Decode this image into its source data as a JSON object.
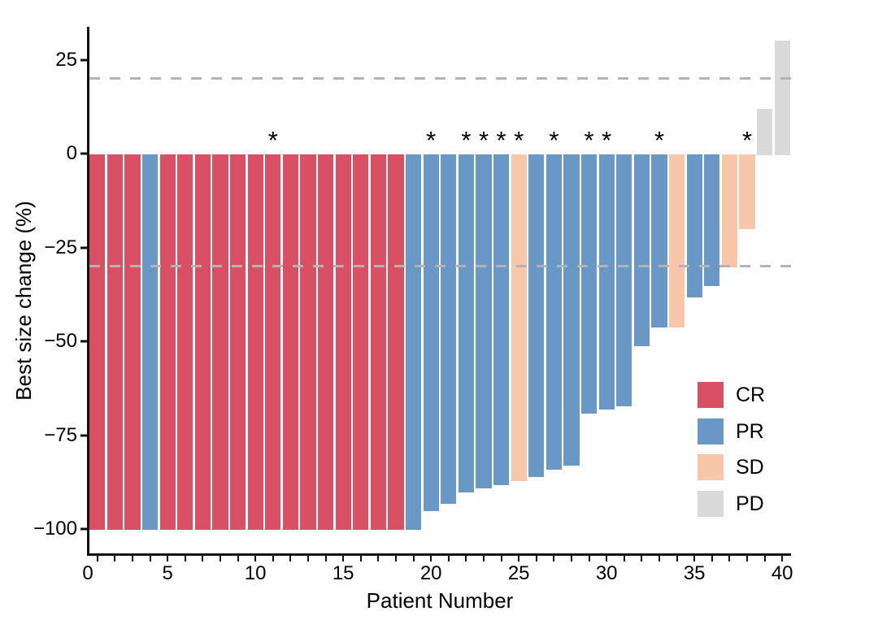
{
  "chart_data": {
    "type": "bar",
    "subtype": "waterfall",
    "title": "",
    "xlabel": "Patient Number",
    "ylabel": "Best size change (%)",
    "xlim": [
      0,
      40
    ],
    "ylim": [
      -100,
      30
    ],
    "grid": "off",
    "annotation_symbol": "*",
    "x_tick_labels": [
      "0",
      "5",
      "10",
      "15",
      "20",
      "25",
      "30",
      "35",
      "40"
    ],
    "x_tick_values": [
      0,
      5,
      10,
      15,
      20,
      25,
      30,
      35,
      40
    ],
    "y_ticks": [
      {
        "value": 25,
        "label": "25"
      },
      {
        "value": 0,
        "label": "0"
      },
      {
        "value": -25,
        "label": "−25"
      },
      {
        "value": -50,
        "label": "−50"
      },
      {
        "value": -75,
        "label": "−75"
      },
      {
        "value": -100,
        "label": "−100"
      }
    ],
    "reference_lines": [
      {
        "value": 20,
        "style": "dashed",
        "color": "#b3b3b3"
      },
      {
        "value": -30,
        "style": "dashed",
        "color": "#b3b3b3"
      }
    ],
    "colors": {
      "CR": "#d94f63",
      "PR": "#6997c6",
      "SD": "#f8c7aa",
      "PD": "#d9d9d9"
    },
    "legend": {
      "position": "right-center",
      "entries": [
        {
          "label": "CR",
          "response": "CR"
        },
        {
          "label": "PR",
          "response": "PR"
        },
        {
          "label": "SD",
          "response": "SD"
        },
        {
          "label": "PD",
          "response": "PD"
        }
      ]
    },
    "patients": [
      {
        "patient": 1,
        "value": -100,
        "response": "CR",
        "asterisk": false
      },
      {
        "patient": 2,
        "value": -100,
        "response": "CR",
        "asterisk": false
      },
      {
        "patient": 3,
        "value": -100,
        "response": "CR",
        "asterisk": false
      },
      {
        "patient": 4,
        "value": -100,
        "response": "PR",
        "asterisk": false
      },
      {
        "patient": 5,
        "value": -100,
        "response": "CR",
        "asterisk": false
      },
      {
        "patient": 6,
        "value": -100,
        "response": "CR",
        "asterisk": false
      },
      {
        "patient": 7,
        "value": -100,
        "response": "CR",
        "asterisk": false
      },
      {
        "patient": 8,
        "value": -100,
        "response": "CR",
        "asterisk": false
      },
      {
        "patient": 9,
        "value": -100,
        "response": "CR",
        "asterisk": false
      },
      {
        "patient": 10,
        "value": -100,
        "response": "CR",
        "asterisk": false
      },
      {
        "patient": 11,
        "value": -100,
        "response": "CR",
        "asterisk": true
      },
      {
        "patient": 12,
        "value": -100,
        "response": "CR",
        "asterisk": false
      },
      {
        "patient": 13,
        "value": -100,
        "response": "CR",
        "asterisk": false
      },
      {
        "patient": 14,
        "value": -100,
        "response": "CR",
        "asterisk": false
      },
      {
        "patient": 15,
        "value": -100,
        "response": "CR",
        "asterisk": false
      },
      {
        "patient": 16,
        "value": -100,
        "response": "CR",
        "asterisk": false
      },
      {
        "patient": 17,
        "value": -100,
        "response": "CR",
        "asterisk": false
      },
      {
        "patient": 18,
        "value": -100,
        "response": "CR",
        "asterisk": false
      },
      {
        "patient": 19,
        "value": -100,
        "response": "PR",
        "asterisk": false
      },
      {
        "patient": 20,
        "value": -95,
        "response": "PR",
        "asterisk": true
      },
      {
        "patient": 21,
        "value": -93,
        "response": "PR",
        "asterisk": false
      },
      {
        "patient": 22,
        "value": -90,
        "response": "PR",
        "asterisk": true
      },
      {
        "patient": 23,
        "value": -89,
        "response": "PR",
        "asterisk": true
      },
      {
        "patient": 24,
        "value": -88,
        "response": "PR",
        "asterisk": true
      },
      {
        "patient": 25,
        "value": -87,
        "response": "SD",
        "asterisk": true
      },
      {
        "patient": 26,
        "value": -86,
        "response": "PR",
        "asterisk": false
      },
      {
        "patient": 27,
        "value": -84,
        "response": "PR",
        "asterisk": true
      },
      {
        "patient": 28,
        "value": -83,
        "response": "PR",
        "asterisk": false
      },
      {
        "patient": 29,
        "value": -69,
        "response": "PR",
        "asterisk": true
      },
      {
        "patient": 30,
        "value": -68,
        "response": "PR",
        "asterisk": true
      },
      {
        "patient": 31,
        "value": -67,
        "response": "PR",
        "asterisk": false
      },
      {
        "patient": 32,
        "value": -51,
        "response": "PR",
        "asterisk": false
      },
      {
        "patient": 33,
        "value": -46,
        "response": "PR",
        "asterisk": true
      },
      {
        "patient": 34,
        "value": -46,
        "response": "SD",
        "asterisk": false
      },
      {
        "patient": 35,
        "value": -38,
        "response": "PR",
        "asterisk": false
      },
      {
        "patient": 36,
        "value": -35,
        "response": "PR",
        "asterisk": false
      },
      {
        "patient": 37,
        "value": -30,
        "response": "SD",
        "asterisk": false
      },
      {
        "patient": 38,
        "value": -20,
        "response": "SD",
        "asterisk": true
      },
      {
        "patient": 39,
        "value": 12,
        "response": "PD",
        "asterisk": false
      },
      {
        "patient": 40,
        "value": 30,
        "response": "PD",
        "asterisk": false
      }
    ]
  }
}
